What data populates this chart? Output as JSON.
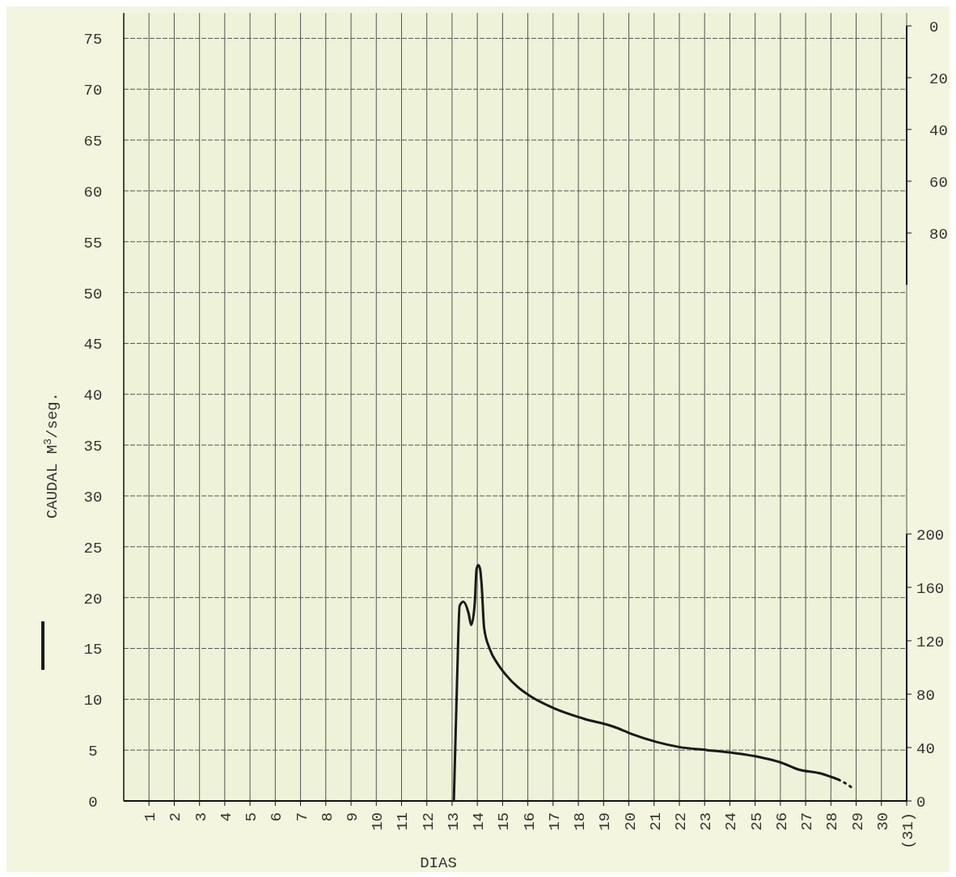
{
  "chart_data": {
    "type": "line",
    "xlabel": "DIAS",
    "ylabel": "CAUDAL M$^{3}$/seg.",
    "xlim": [
      0,
      31
    ],
    "ylim": [
      0,
      77.5
    ],
    "xticks": [
      1,
      2,
      3,
      4,
      5,
      6,
      7,
      8,
      9,
      10,
      11,
      12,
      13,
      14,
      15,
      16,
      17,
      18,
      19,
      20,
      21,
      22,
      23,
      24,
      25,
      26,
      27,
      28,
      29,
      30,
      {
        "value": 31,
        "label": "(31)"
      }
    ],
    "yticks": [
      0,
      5,
      10,
      15,
      20,
      25,
      30,
      35,
      40,
      45,
      50,
      55,
      60,
      65,
      70,
      75
    ],
    "y2lim": [
      0,
      200
    ],
    "y2ticks": [
      0,
      40,
      80,
      120,
      160,
      200
    ],
    "y3lim": [
      100,
      0
    ],
    "y3ticks": [
      0,
      20,
      40,
      60,
      80
    ],
    "grid": true,
    "marker": "none",
    "series": [
      {
        "color": "#1a1a1a",
        "line_style": "solid",
        "x": [
          13.07,
          13.2,
          13.3,
          13.45,
          13.65,
          13.76,
          13.9,
          13.97,
          14.04,
          14.11,
          14.17,
          14.27,
          14.5,
          14.8,
          15.13,
          15.6,
          16.1,
          17.05,
          18.2,
          19.4,
          20.1,
          21.1,
          22.0,
          23.1,
          24.2,
          25.2,
          26.0,
          26.7,
          27.6,
          28.3
        ],
        "values": [
          0,
          12,
          19.2,
          19.6,
          18.5,
          17.3,
          19.5,
          22.8,
          23.2,
          22.8,
          21.3,
          17.0,
          14.9,
          13.5,
          12.4,
          11.2,
          10.3,
          9.1,
          8.1,
          7.3,
          6.6,
          5.8,
          5.3,
          5.0,
          4.7,
          4.3,
          3.8,
          3.1,
          2.7,
          2.1
        ]
      },
      {
        "color": "#1a1a1a",
        "line_style": "dotted",
        "x": [
          28.3,
          28.6,
          28.9
        ],
        "values": [
          2.1,
          1.7,
          1.2
        ]
      }
    ]
  }
}
